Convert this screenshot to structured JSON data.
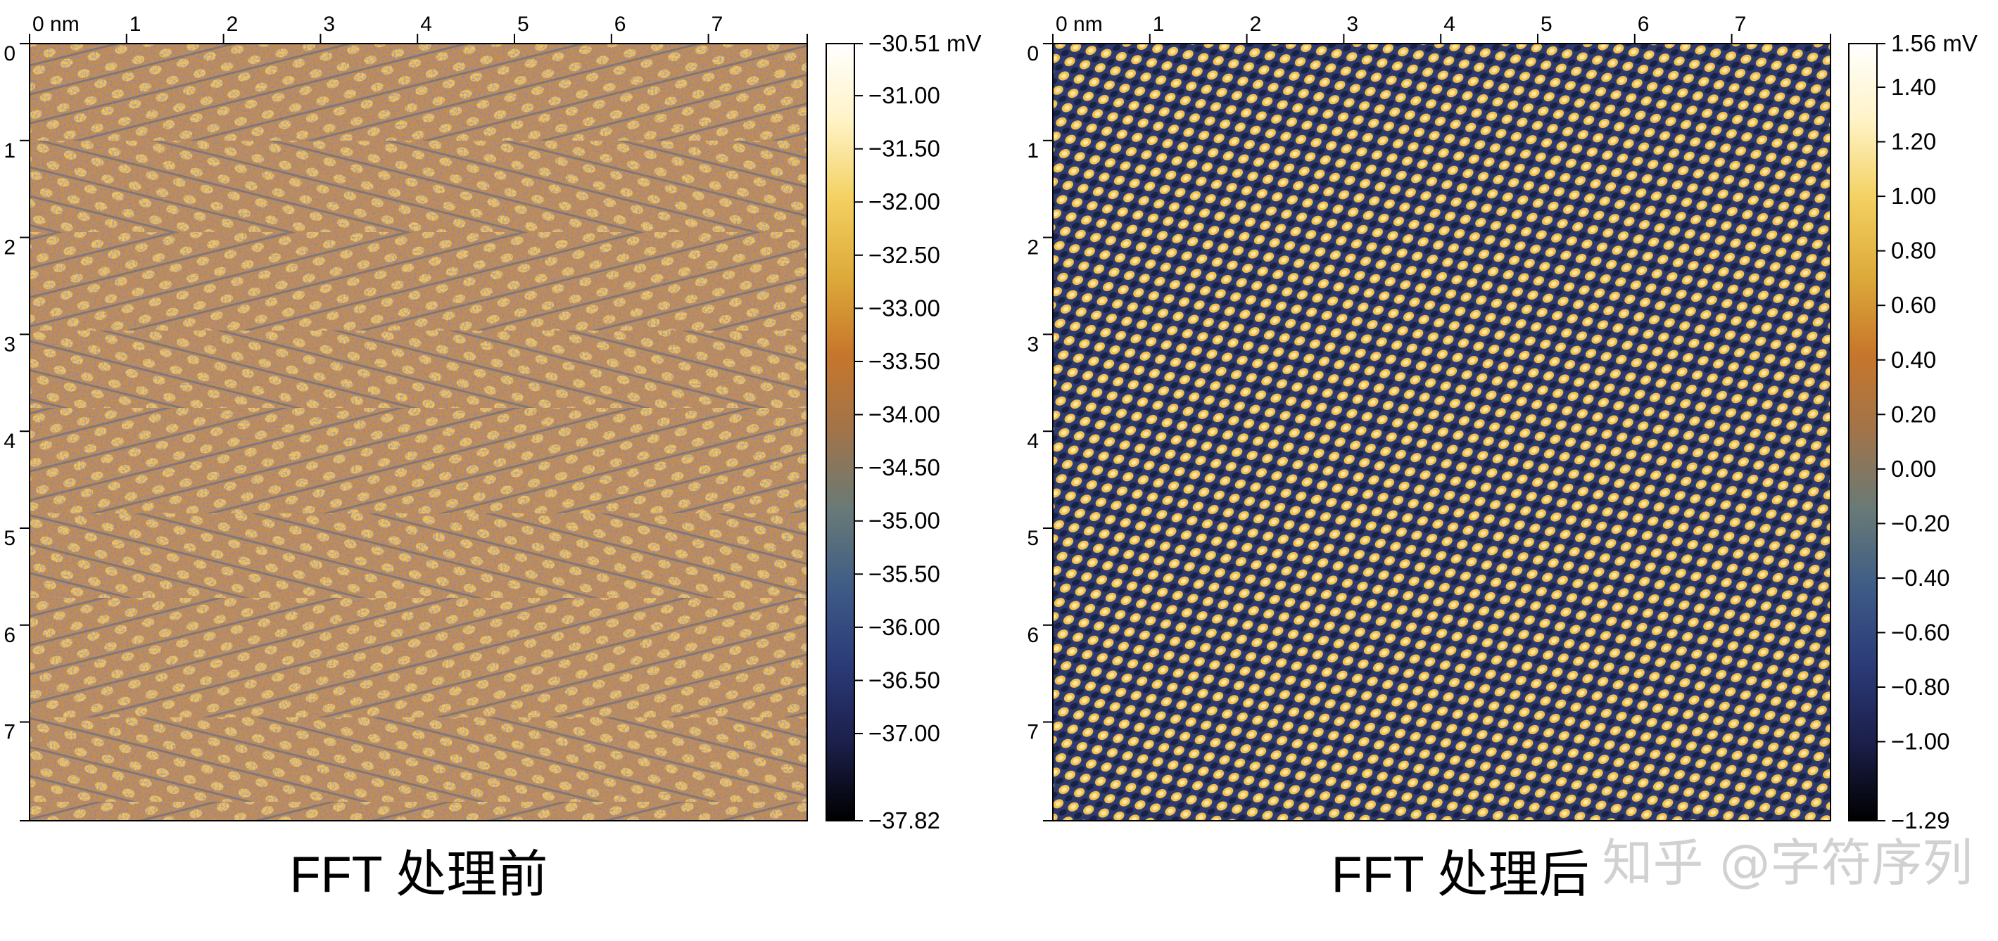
{
  "panels": [
    {
      "id": "before",
      "caption": "FFT 处理前",
      "axis_unit": "nm",
      "x_ticks": [
        "0 nm",
        "1",
        "2",
        "3",
        "4",
        "5",
        "6",
        "7"
      ],
      "y_ticks": [
        "0",
        "1",
        "2",
        "3",
        "4",
        "5",
        "6",
        "7"
      ],
      "image_kind": "noisy herringbone lattice",
      "colorbar": {
        "labels": [
          "−30.51 mV",
          "−31.00",
          "−31.50",
          "−32.00",
          "−32.50",
          "−33.00",
          "−33.50",
          "−34.00",
          "−34.50",
          "−35.00",
          "−35.50",
          "−36.00",
          "−36.50",
          "−37.00",
          "−37.82"
        ],
        "values": [
          -30.51,
          -31.0,
          -31.5,
          -32.0,
          -32.5,
          -33.0,
          -33.5,
          -34.0,
          -34.5,
          -35.0,
          -35.5,
          -36.0,
          -36.5,
          -37.0,
          -37.82
        ],
        "min": -37.82,
        "max": -30.51
      }
    },
    {
      "id": "after",
      "caption": "FFT 处理后",
      "axis_unit": "nm",
      "x_ticks": [
        "0 nm",
        "1",
        "2",
        "3",
        "4",
        "5",
        "6",
        "7"
      ],
      "y_ticks": [
        "0",
        "1",
        "2",
        "3",
        "4",
        "5",
        "6",
        "7"
      ],
      "image_kind": "smooth periodic lattice",
      "colorbar": {
        "labels": [
          "1.56 mV",
          "1.40",
          "1.20",
          "1.00",
          "0.80",
          "0.60",
          "0.40",
          "0.20",
          "0.00",
          "−0.20",
          "−0.40",
          "−0.60",
          "−0.80",
          "−1.00",
          "−1.29"
        ],
        "values": [
          1.56,
          1.4,
          1.2,
          1.0,
          0.8,
          0.6,
          0.4,
          0.2,
          0.0,
          -0.2,
          -0.4,
          -0.6,
          -0.8,
          -1.0,
          -1.29
        ],
        "min": -1.29,
        "max": 1.56
      }
    }
  ],
  "colormap": [
    "#000000",
    "#1b1f4a",
    "#2b3a78",
    "#3e5b86",
    "#687a76",
    "#a0744a",
    "#c7762b",
    "#ddaa3a",
    "#f3d060",
    "#fff3c6",
    "#ffffff"
  ],
  "watermark": "知乎 @字符序列"
}
